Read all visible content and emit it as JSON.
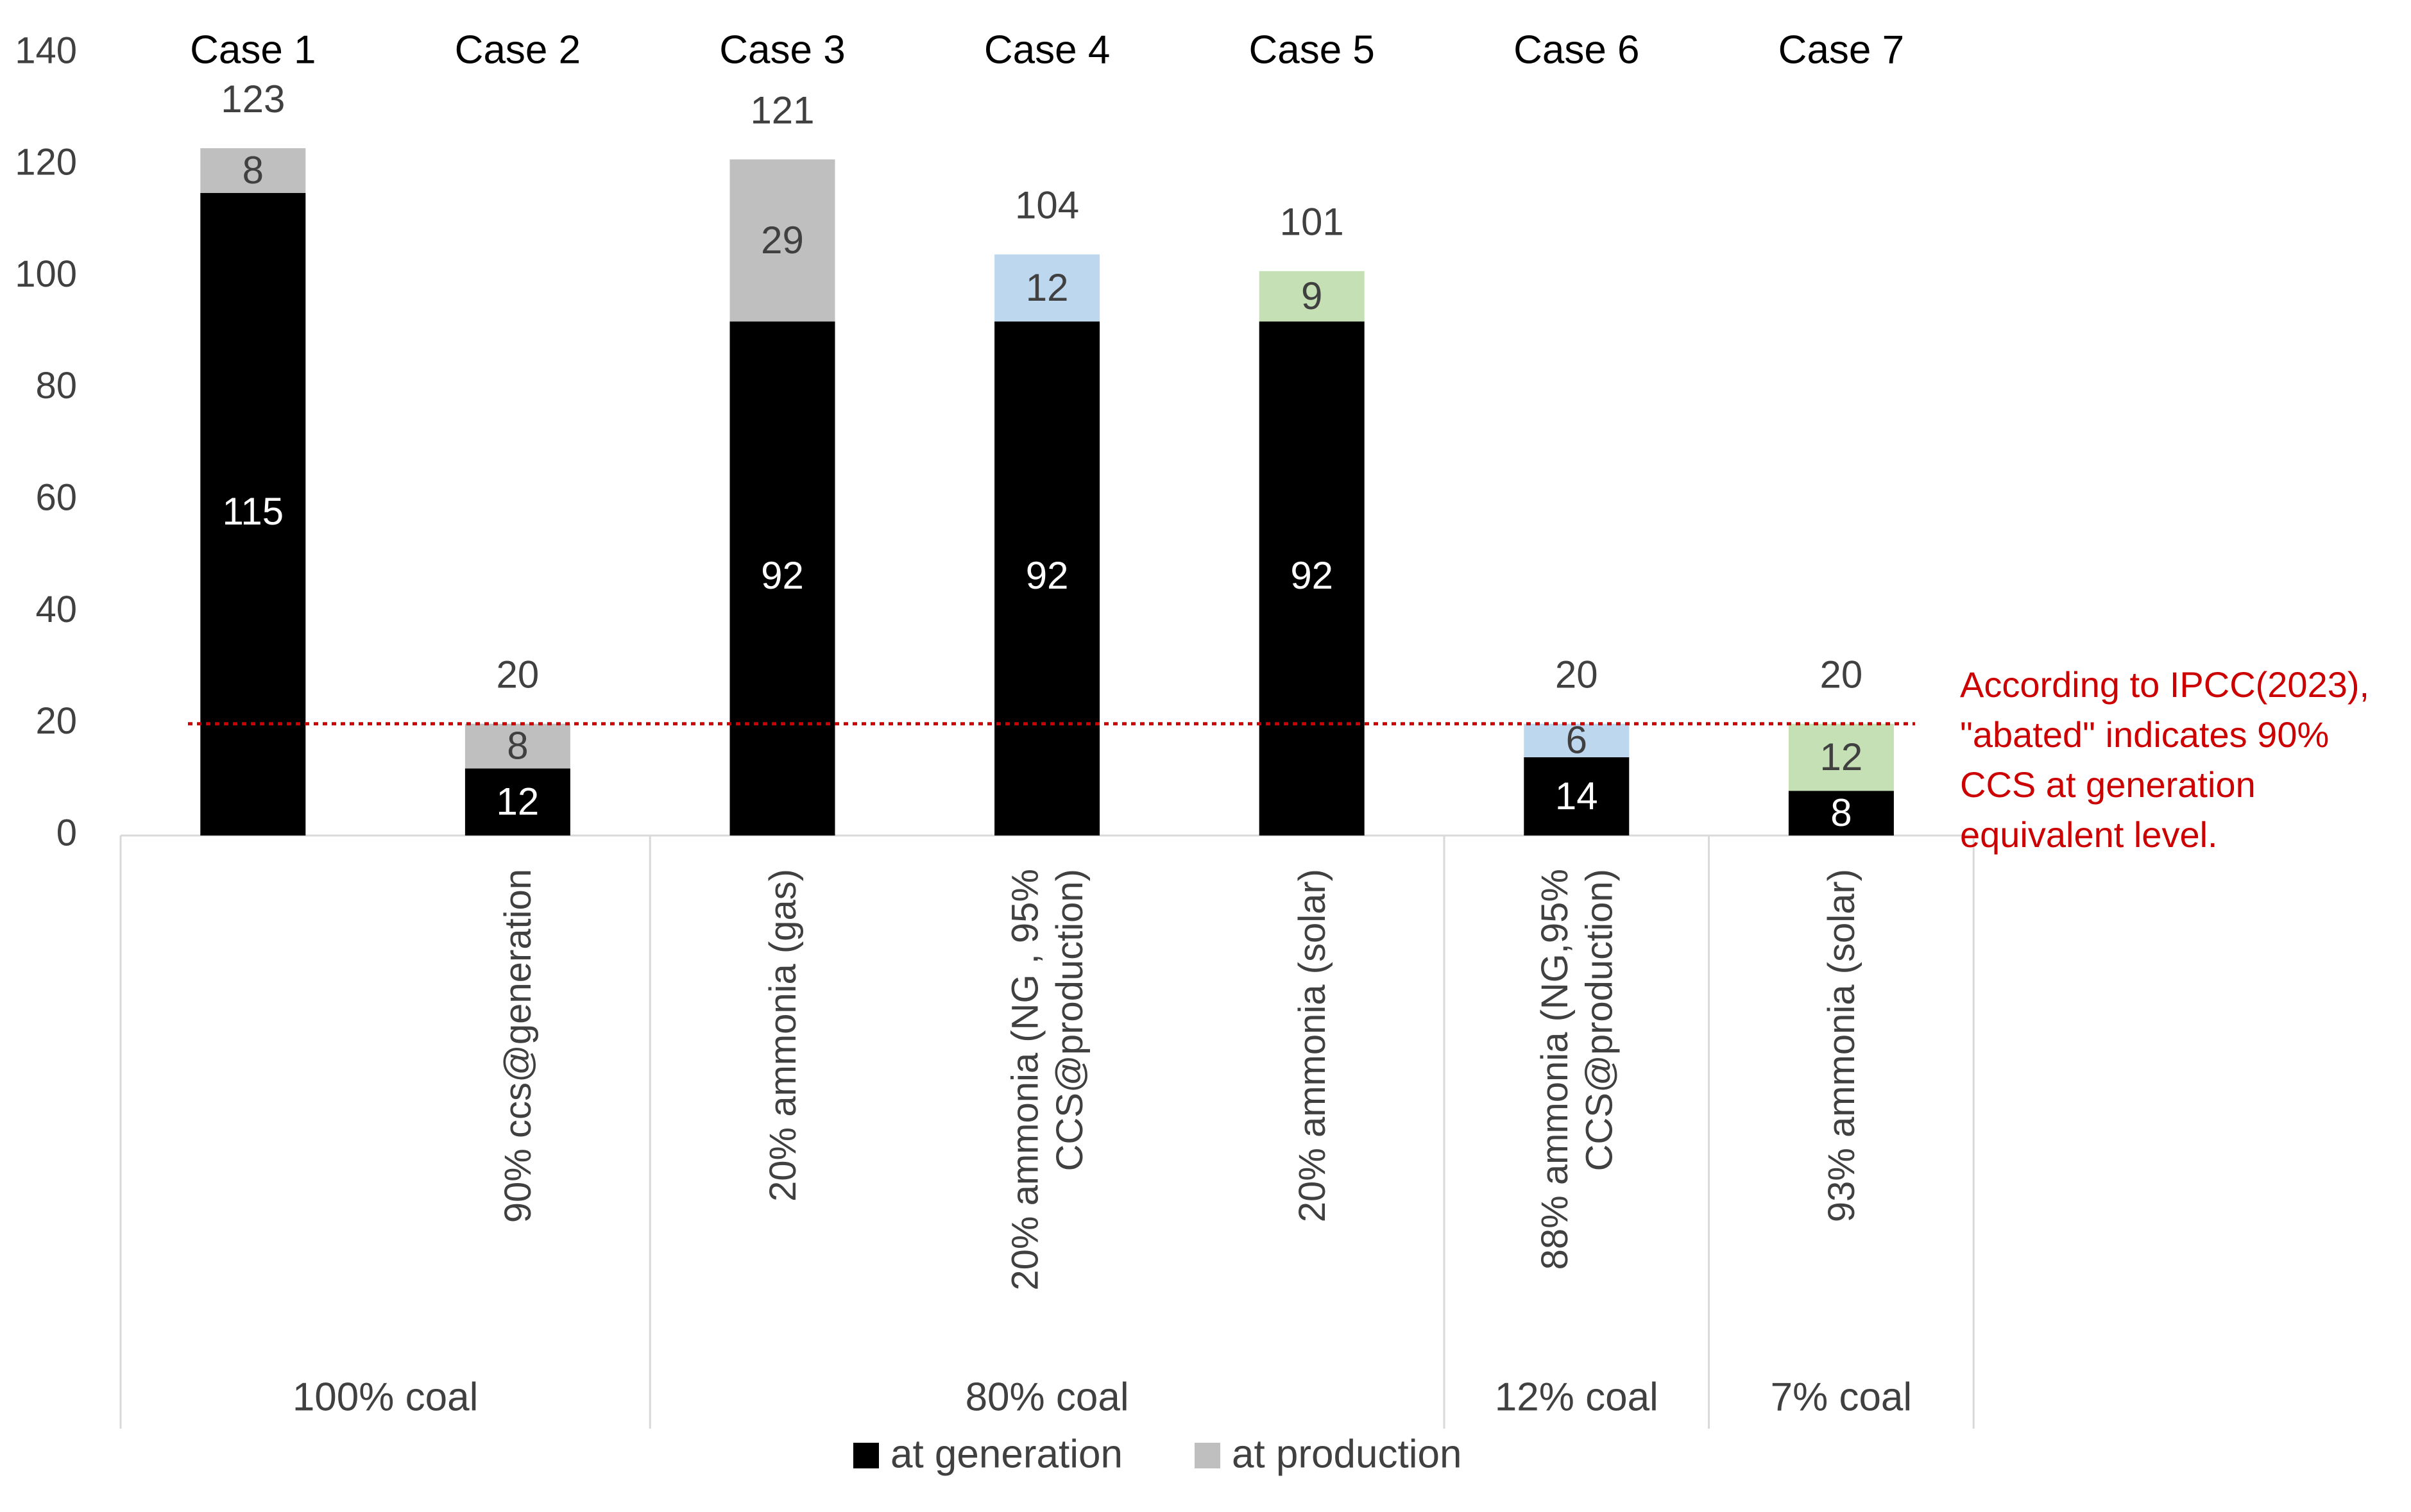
{
  "chart_data": {
    "type": "bar",
    "stacked": true,
    "ylim": [
      0,
      140
    ],
    "yticks": [
      0,
      20,
      40,
      60,
      80,
      100,
      120,
      140
    ],
    "grid": false,
    "legend_position": "bottom",
    "cases": [
      {
        "label": "Case 1",
        "sub": "",
        "group": "100% coal",
        "generation": 115,
        "production": 8,
        "total": 123,
        "production_type": "grey"
      },
      {
        "label": "Case 2",
        "sub": "90% ccs@generation",
        "group": "100% coal",
        "generation": 12,
        "production": 8,
        "total": 20,
        "production_type": "grey"
      },
      {
        "label": "Case 3",
        "sub": "20% ammonia (gas)",
        "group": "80% coal",
        "generation": 92,
        "production": 29,
        "total": 121,
        "production_type": "grey"
      },
      {
        "label": "Case 4",
        "sub": "20% ammonia (NG , 95% CCS@production)",
        "group": "80% coal",
        "generation": 92,
        "production": 12,
        "total": 104,
        "production_type": "blue"
      },
      {
        "label": "Case 5",
        "sub": "20% ammonia (solar)",
        "group": "80% coal",
        "generation": 92,
        "production": 9,
        "total": 101,
        "production_type": "green"
      },
      {
        "label": "Case 6",
        "sub": "88% ammonia (NG,95% CCS@production)",
        "group": "12% coal",
        "generation": 14,
        "production": 6,
        "total": 20,
        "production_type": "blue"
      },
      {
        "label": "Case 7",
        "sub": "93% ammonia (solar)",
        "group": "7% coal",
        "generation": 8,
        "production": 12,
        "total": 20,
        "production_type": "green"
      }
    ],
    "groups": [
      {
        "label": "100% coal",
        "from": 0,
        "to": 1
      },
      {
        "label": "80% coal",
        "from": 2,
        "to": 4
      },
      {
        "label": "12% coal",
        "from": 5,
        "to": 5
      },
      {
        "label": "7% coal",
        "from": 6,
        "to": 6
      }
    ],
    "series": [
      {
        "name": "at generation",
        "color": "#000000"
      },
      {
        "name": "at production",
        "color": "#bfbfbf"
      }
    ],
    "production_colors": {
      "grey": "#bfbfbf",
      "blue": "#bdd7ee",
      "green": "#c5e0b4"
    },
    "reference_line": {
      "value": 20,
      "color": "#cc0000",
      "annotation": [
        "According to IPCC(2023),",
        "\"abated\" indicates 90%",
        "CCS at generation",
        "equivalent level."
      ]
    }
  }
}
